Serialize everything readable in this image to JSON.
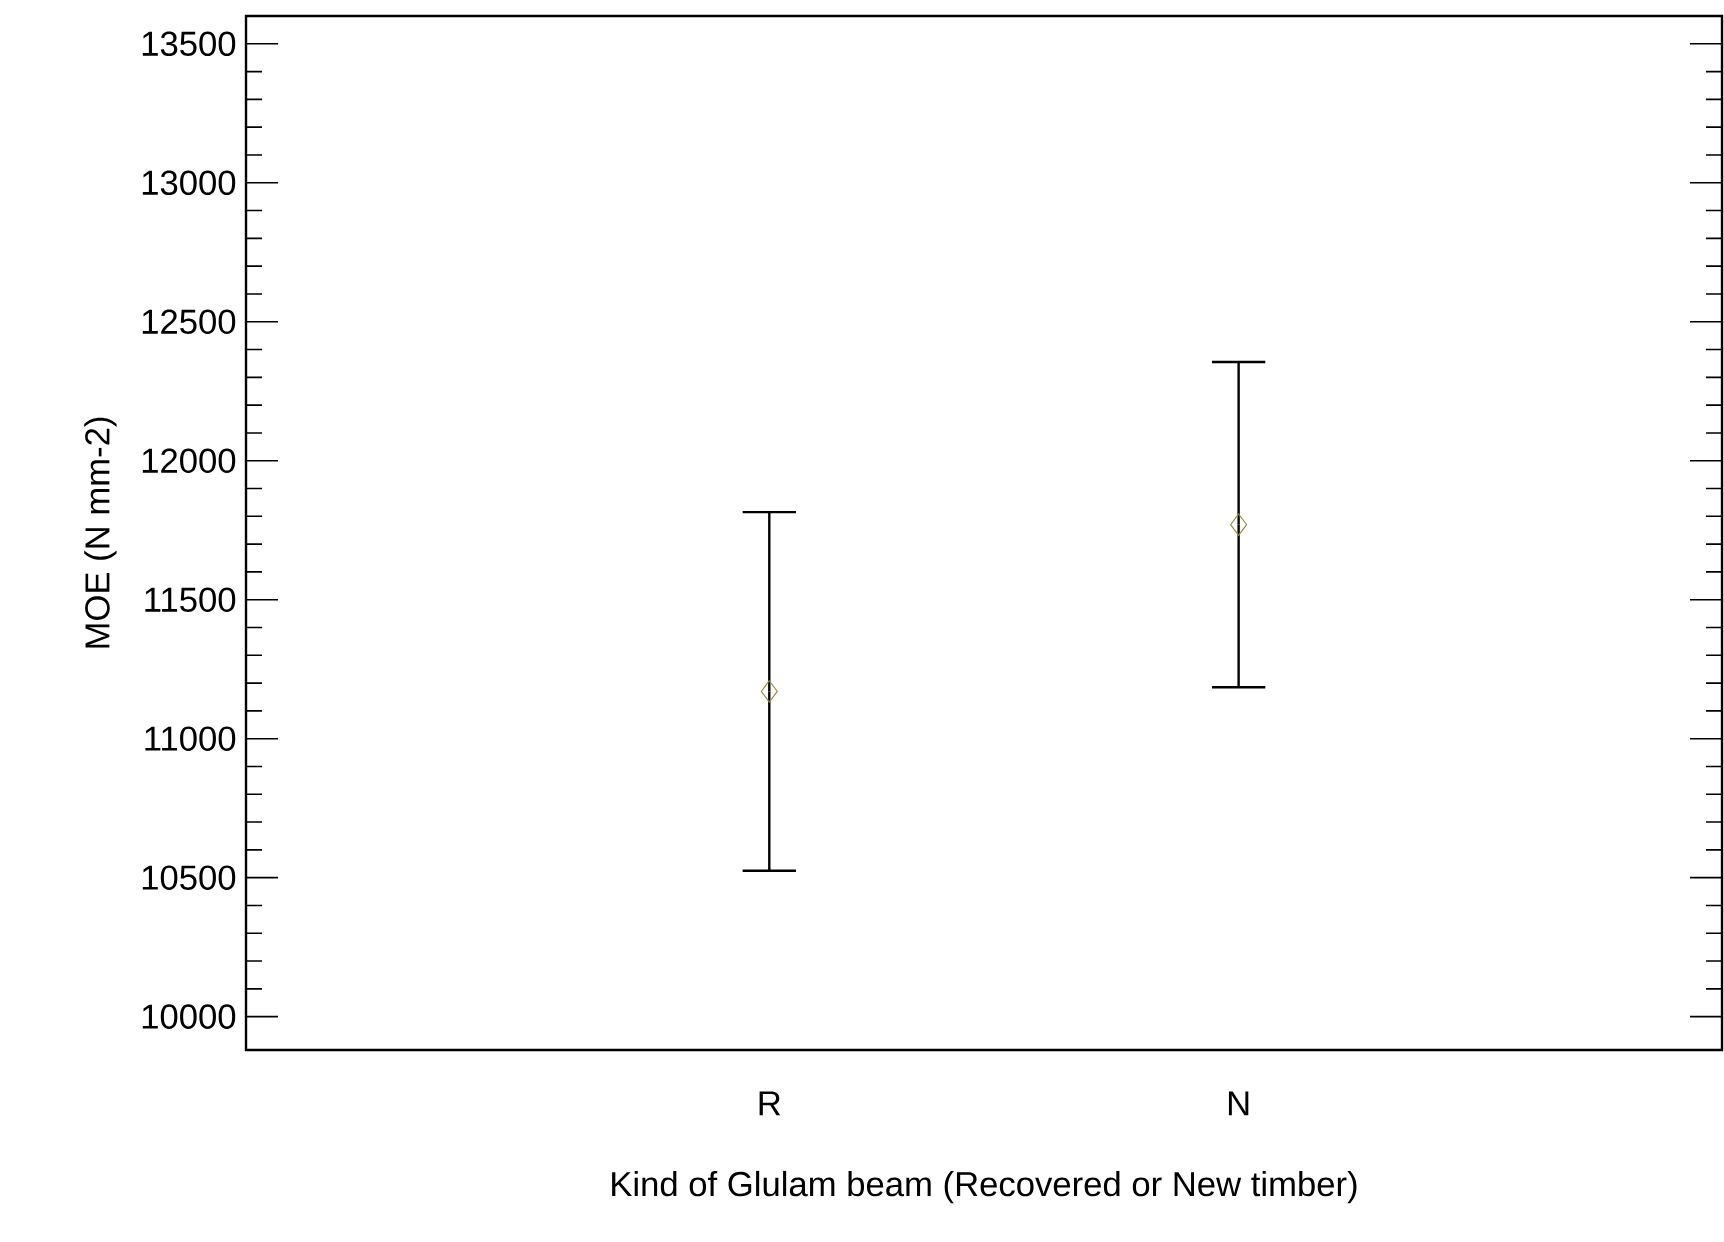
{
  "chart_data": {
    "type": "scatter",
    "xlabel": "Kind of Glulam beam (Recovered or New timber)",
    "ylabel": "MOE (N mm-2)",
    "categories": [
      "R",
      "N"
    ],
    "values": [
      11170,
      11770
    ],
    "errors": [
      645,
      585
    ],
    "color": "#8c8c3c",
    "marker": "diamond",
    "ylim": [
      9880,
      13600
    ],
    "yticks": [
      10000,
      10500,
      11000,
      11500,
      12000,
      12500,
      13000,
      13500
    ]
  }
}
